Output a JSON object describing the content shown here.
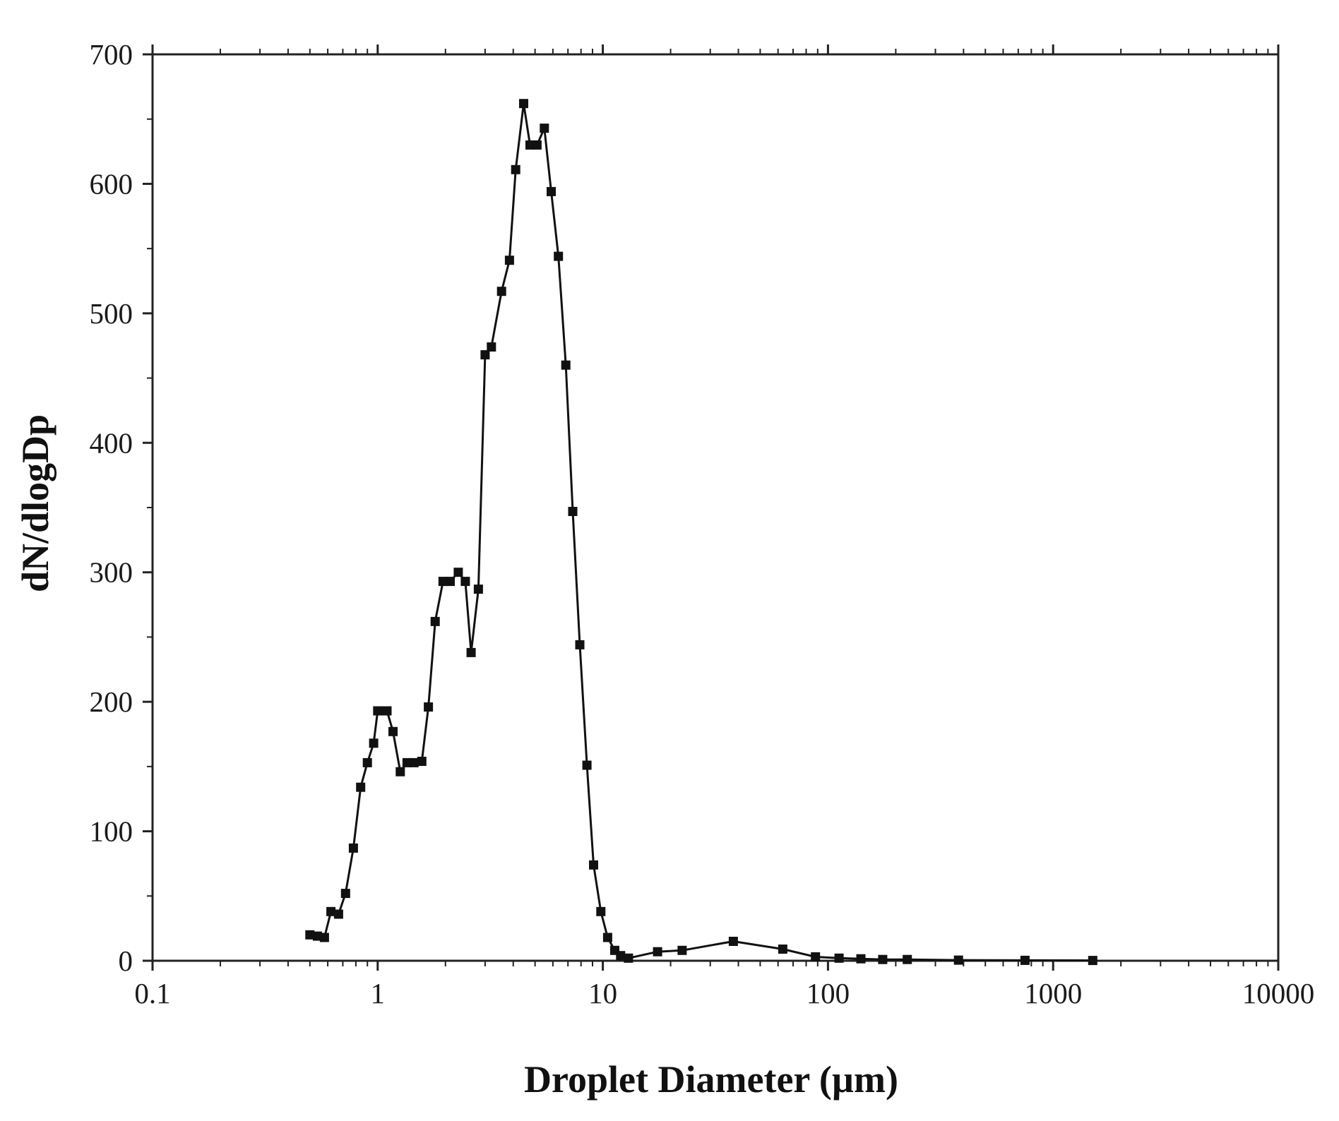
{
  "chart_data": {
    "type": "line",
    "title": "",
    "xlabel": "Droplet Diameter (µm)",
    "ylabel": "dN/dlogDp",
    "x_scale": "log",
    "xlim": [
      0.1,
      10000
    ],
    "ylim": [
      0,
      700
    ],
    "x_ticks": [
      "0.1",
      "1",
      "10",
      "100",
      "1000",
      "10000"
    ],
    "y_ticks": [
      "0",
      "100",
      "200",
      "300",
      "400",
      "500",
      "600",
      "700"
    ],
    "grid": false,
    "legend": "none",
    "marker": "square",
    "colors": {
      "line": "#111111",
      "marker": "#111111",
      "axis": "#222222"
    },
    "series": [
      {
        "points": [
          [
            0.5,
            20
          ],
          [
            0.54,
            19
          ],
          [
            0.58,
            18
          ],
          [
            0.62,
            38
          ],
          [
            0.67,
            36
          ],
          [
            0.72,
            52
          ],
          [
            0.78,
            87
          ],
          [
            0.84,
            134
          ],
          [
            0.9,
            153
          ],
          [
            0.96,
            168
          ],
          [
            1.0,
            193
          ],
          [
            1.05,
            193
          ],
          [
            1.1,
            193
          ],
          [
            1.17,
            177
          ],
          [
            1.26,
            146
          ],
          [
            1.35,
            153
          ],
          [
            1.45,
            153
          ],
          [
            1.57,
            154
          ],
          [
            1.68,
            196
          ],
          [
            1.8,
            262
          ],
          [
            1.95,
            293
          ],
          [
            2.1,
            293
          ],
          [
            2.28,
            300
          ],
          [
            2.45,
            293
          ],
          [
            2.6,
            238
          ],
          [
            2.8,
            287
          ],
          [
            3.0,
            468
          ],
          [
            3.2,
            474
          ],
          [
            3.55,
            517
          ],
          [
            3.85,
            541
          ],
          [
            4.1,
            611
          ],
          [
            4.45,
            662
          ],
          [
            4.75,
            630
          ],
          [
            5.1,
            630
          ],
          [
            5.5,
            643
          ],
          [
            5.9,
            594
          ],
          [
            6.35,
            544
          ],
          [
            6.85,
            460
          ],
          [
            7.35,
            347
          ],
          [
            7.9,
            244
          ],
          [
            8.5,
            151
          ],
          [
            9.1,
            74
          ],
          [
            9.8,
            38
          ],
          [
            10.5,
            18
          ],
          [
            11.3,
            8
          ],
          [
            12.0,
            4
          ],
          [
            13.0,
            2
          ],
          [
            17.5,
            7
          ],
          [
            22.5,
            8
          ],
          [
            38,
            15
          ],
          [
            63,
            9
          ],
          [
            88,
            3
          ],
          [
            112,
            2
          ],
          [
            140,
            1.5
          ],
          [
            175,
            1
          ],
          [
            225,
            1
          ],
          [
            380,
            0.5
          ],
          [
            750,
            0.3
          ],
          [
            1500,
            0.2
          ]
        ]
      }
    ]
  }
}
